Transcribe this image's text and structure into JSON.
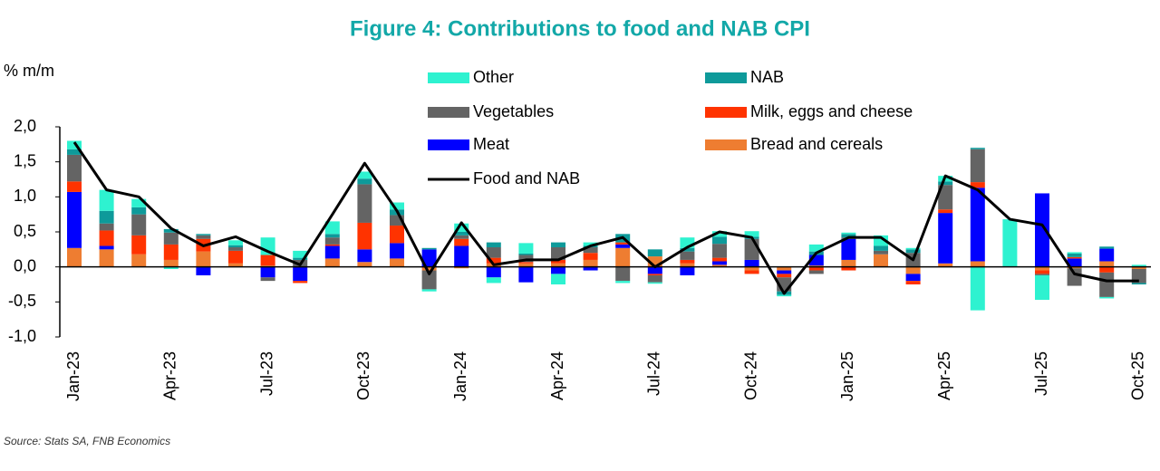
{
  "chart_data": {
    "type": "bar",
    "stacked": true,
    "title": "Figure 4: Contributions to food and NAB CPI",
    "y_label": "% m/m",
    "source": "Source: Stats SA, FNB Economics",
    "categories": [
      "Jan-23",
      null,
      null,
      "Apr-23",
      null,
      null,
      "Jul-23",
      null,
      null,
      "Oct-23",
      null,
      null,
      "Jan-24",
      null,
      null,
      "Apr-24",
      null,
      null,
      "Jul-24",
      null,
      null,
      "Oct-24",
      null,
      null,
      "Jan-25",
      null,
      null,
      "Apr-25",
      null,
      null,
      "Jul-25",
      null,
      null,
      "Oct-25"
    ],
    "ylim": [
      -1,
      2
    ],
    "yticks": [
      {
        "value": 2,
        "label": "2,0"
      },
      {
        "value": 1.5,
        "label": "1,5"
      },
      {
        "value": 1,
        "label": "1,0"
      },
      {
        "value": 0.5,
        "label": "0,5"
      },
      {
        "value": 0,
        "label": "0,0"
      },
      {
        "value": -0.5,
        "label": "-0,5"
      },
      {
        "value": -1,
        "label": "-1,0"
      }
    ],
    "series": [
      {
        "name": "Other",
        "color": "#2ef2d0",
        "values": [
          0.12,
          0.3,
          0.12,
          -0.03,
          0,
          0.07,
          0.25,
          0.1,
          0.18,
          0.1,
          0.1,
          -0.03,
          0.12,
          -0.08,
          0.15,
          -0.15,
          0.05,
          -0.03,
          -0.02,
          0.15,
          0.08,
          0.08,
          -0.02,
          0.1,
          0.02,
          0.15,
          0.02,
          0.08,
          -0.62,
          0.68,
          -0.35,
          0.02,
          -0.02,
          0.03
        ]
      },
      {
        "name": "NAB",
        "color": "#0e9a9a",
        "values": [
          0.08,
          0.18,
          0.1,
          0.05,
          0.02,
          0.03,
          0,
          0.03,
          0.05,
          0.08,
          0.08,
          0.02,
          0.05,
          0.07,
          0.02,
          0.07,
          0.02,
          0.12,
          0.1,
          0.05,
          0.1,
          0.03,
          -0.05,
          0.05,
          0.05,
          0.07,
          0.05,
          0.05,
          0.02,
          0,
          0,
          0.05,
          0.03,
          -0.02
        ]
      },
      {
        "name": "Vegetables",
        "color": "#646464",
        "values": [
          0.38,
          0.1,
          0.3,
          0.17,
          0.05,
          0.05,
          -0.05,
          0.1,
          0.1,
          0.55,
          0.15,
          -0.27,
          0.05,
          0.15,
          0.1,
          0.18,
          0.08,
          -0.2,
          -0.1,
          0.12,
          0.2,
          0.3,
          -0.2,
          -0.05,
          0.02,
          0.05,
          0.2,
          0.35,
          0.47,
          0,
          -0.02,
          -0.25,
          -0.35,
          -0.2
        ]
      },
      {
        "name": "Milk, eggs and cheese",
        "color": "#ff3300",
        "values": [
          0.15,
          0.22,
          0.27,
          0.22,
          0.18,
          0.18,
          0.15,
          -0.03,
          0.02,
          0.38,
          0.25,
          0,
          0.1,
          0.08,
          0.02,
          0.05,
          0.1,
          0.03,
          -0.02,
          0.05,
          0.05,
          -0.05,
          -0.05,
          -0.05,
          -0.05,
          0,
          -0.05,
          0.05,
          0.08,
          0,
          -0.05,
          0.02,
          -0.08,
          0
        ]
      },
      {
        "name": "Meat",
        "color": "#0000ff",
        "values": [
          0.8,
          0.05,
          0,
          0,
          -0.12,
          0,
          -0.15,
          -0.2,
          0.18,
          0.18,
          0.22,
          0.25,
          0.3,
          -0.15,
          -0.22,
          -0.1,
          -0.05,
          0.05,
          -0.1,
          -0.12,
          0.05,
          0.1,
          -0.05,
          0.15,
          0.3,
          0,
          -0.1,
          0.72,
          1.05,
          0,
          1.05,
          0.12,
          0.18,
          0
        ]
      },
      {
        "name": "Bread and cereals",
        "color": "#ee7d31",
        "values": [
          0.27,
          0.25,
          0.18,
          0.1,
          0.22,
          0.05,
          0.02,
          0,
          0.12,
          0.07,
          0.12,
          -0.05,
          -0.02,
          0.05,
          0.05,
          0.05,
          0.1,
          0.27,
          0.15,
          0.05,
          0.03,
          -0.05,
          -0.05,
          0.02,
          0.1,
          0.18,
          -0.1,
          0.05,
          0.08,
          0,
          -0.05,
          -0.02,
          0.08,
          -0.03
        ]
      },
      {
        "name": "Food and NAB",
        "color": "#000000",
        "type": "line",
        "values": [
          1.78,
          1.1,
          1.0,
          0.55,
          0.3,
          0.43,
          0.22,
          0.03,
          0.75,
          1.48,
          0.8,
          -0.1,
          0.63,
          0.03,
          0.1,
          0.1,
          0.3,
          0.42,
          0,
          0.28,
          0.5,
          0.42,
          -0.38,
          0.2,
          0.42,
          0.42,
          0.1,
          1.3,
          1.1,
          0.68,
          0.6,
          -0.1,
          -0.2,
          -0.2
        ]
      }
    ]
  }
}
